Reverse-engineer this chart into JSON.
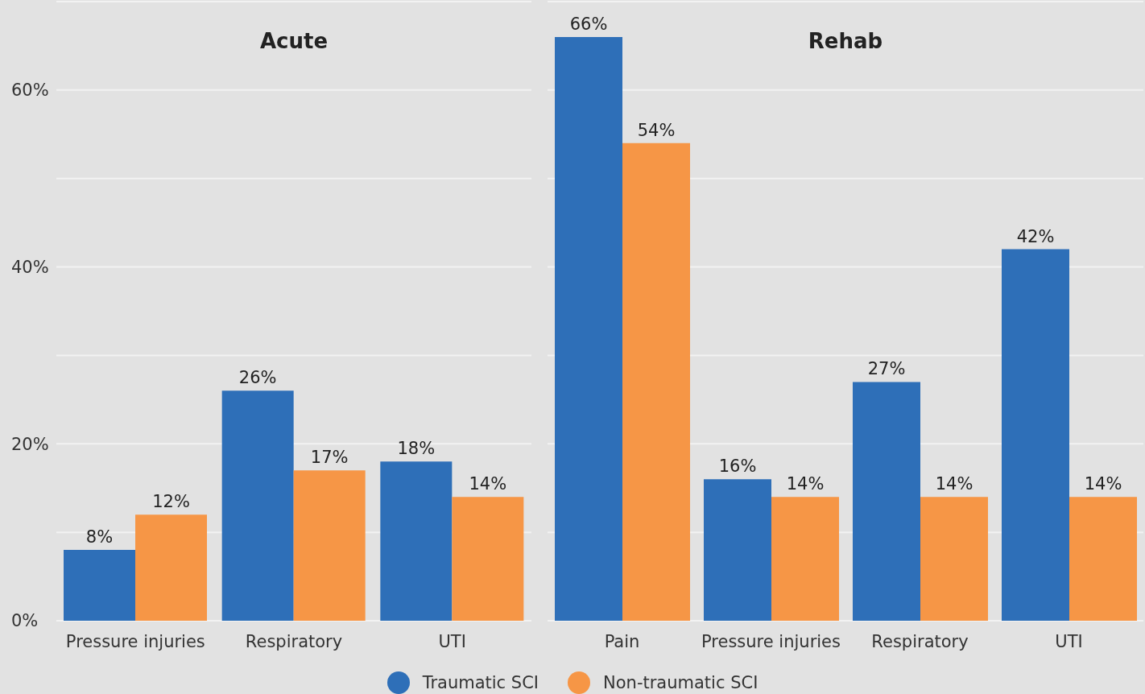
{
  "chart_data": [
    {
      "type": "bar",
      "title": "Acute",
      "categories": [
        "Pressure injuries",
        "Respiratory",
        "UTI"
      ],
      "series": [
        {
          "name": "Traumatic SCI",
          "color": "#2e6fb8",
          "values": [
            8,
            26,
            18
          ],
          "value_labels": [
            "8%",
            "26%",
            "18%"
          ]
        },
        {
          "name": "Non-traumatic SCI",
          "color": "#f69646",
          "values": [
            12,
            17,
            14
          ],
          "value_labels": [
            "12%",
            "17%",
            "14%"
          ]
        }
      ],
      "ylim": [
        0,
        70
      ],
      "yticks": [
        {
          "value": 0,
          "label": "0%"
        },
        {
          "value": 10,
          "label": null
        },
        {
          "value": 20,
          "label": "20%"
        },
        {
          "value": 30,
          "label": null
        },
        {
          "value": 40,
          "label": "40%"
        },
        {
          "value": 50,
          "label": null
        },
        {
          "value": 60,
          "label": "60%"
        },
        {
          "value": 70,
          "label": null
        }
      ],
      "grid": "y",
      "legend": "bottom"
    },
    {
      "type": "bar",
      "title": "Rehab",
      "categories": [
        "Pain",
        "Pressure injuries",
        "Respiratory",
        "UTI"
      ],
      "series": [
        {
          "color": "#2e6fb8",
          "values": [
            66,
            16,
            27,
            42
          ],
          "value_labels": [
            "66%",
            "16%",
            "27%",
            "42%"
          ]
        },
        {
          "color": "#f69646",
          "values": [
            54,
            14,
            14,
            14
          ],
          "value_labels": [
            "54%",
            "14%",
            "14%",
            "14%"
          ]
        }
      ],
      "ylim": [
        0,
        70
      ],
      "yticks": [
        {
          "value": 0,
          "label": null
        },
        {
          "value": 10,
          "label": null
        },
        {
          "value": 20,
          "label": null
        },
        {
          "value": 30,
          "label": null
        },
        {
          "value": 40,
          "label": null
        },
        {
          "value": 50,
          "label": null
        },
        {
          "value": 60,
          "label": null
        },
        {
          "value": 70,
          "label": null
        }
      ],
      "grid": "y",
      "tick_labels": "x"
    }
  ]
}
